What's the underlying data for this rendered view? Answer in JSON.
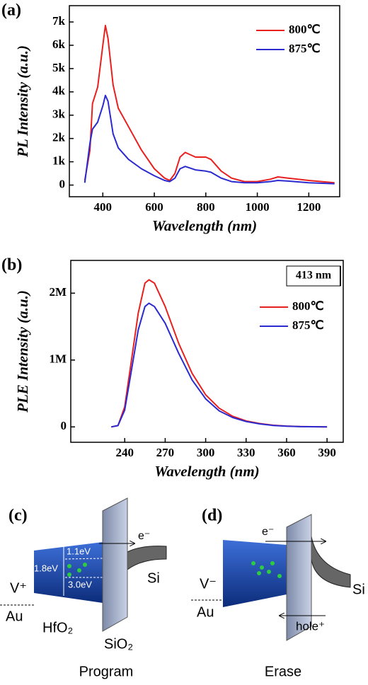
{
  "chart_data": [
    {
      "type": "line",
      "label": "(a)",
      "xlabel": "Wavelength (nm)",
      "ylabel": "PL Intensity (a.u.)",
      "x": [
        330,
        350,
        360,
        380,
        400,
        410,
        420,
        440,
        460,
        500,
        550,
        600,
        640,
        660,
        680,
        700,
        720,
        760,
        800,
        820,
        860,
        900,
        950,
        1000,
        1050,
        1080,
        1120,
        1200,
        1300
      ],
      "series": [
        {
          "name": "800℃",
          "color": "#e8201f",
          "values": [
            200,
            1500,
            3500,
            4200,
            6000,
            6850,
            6300,
            4300,
            3300,
            2500,
            1500,
            700,
            300,
            200,
            500,
            1200,
            1400,
            1200,
            1200,
            1100,
            600,
            300,
            150,
            150,
            250,
            350,
            300,
            200,
            100
          ]
        },
        {
          "name": "875℃",
          "color": "#2a2ad0",
          "values": [
            100,
            1800,
            2400,
            2700,
            3400,
            3850,
            3600,
            2200,
            1600,
            1100,
            700,
            400,
            200,
            150,
            300,
            700,
            800,
            650,
            600,
            550,
            300,
            150,
            100,
            100,
            150,
            200,
            170,
            100,
            60
          ]
        }
      ],
      "xlim": [
        270,
        1320
      ],
      "ylim": [
        -500,
        7700
      ],
      "xticks": [
        400,
        600,
        800,
        1000,
        1200
      ],
      "yticks": [
        0,
        {
          "value": 1000,
          "label": "1k"
        },
        {
          "value": 2000,
          "label": "2k"
        },
        {
          "value": 3000,
          "label": "3k"
        },
        {
          "value": 4000,
          "label": "4k"
        },
        {
          "value": 5000,
          "label": "5k"
        },
        {
          "value": 6000,
          "label": "6k"
        },
        {
          "value": 7000,
          "label": "7k"
        }
      ],
      "legend": "upper right"
    },
    {
      "type": "line",
      "label": "(b)",
      "xlabel": "Wavelength (nm)",
      "ylabel": "PLE Intensity (a.u.)",
      "annotation": "413 nm",
      "x": [
        230,
        235,
        240,
        245,
        250,
        255,
        258,
        262,
        270,
        280,
        290,
        300,
        310,
        320,
        330,
        340,
        350,
        360,
        370,
        390
      ],
      "series": [
        {
          "name": "800℃",
          "color": "#e8201f",
          "values": [
            0,
            20000,
            300000,
            1000000,
            1700000,
            2150000,
            2200000,
            2150000,
            1800000,
            1250000,
            800000,
            480000,
            280000,
            160000,
            90000,
            50000,
            25000,
            12000,
            5000,
            0
          ]
        },
        {
          "name": "875℃",
          "color": "#2a2ad0",
          "values": [
            0,
            20000,
            250000,
            850000,
            1450000,
            1800000,
            1850000,
            1800000,
            1550000,
            1100000,
            700000,
            420000,
            240000,
            140000,
            80000,
            45000,
            22000,
            10000,
            4000,
            0
          ]
        }
      ],
      "xlim": [
        200,
        402
      ],
      "ylim": [
        -230000,
        2490000
      ],
      "xticks": [
        240,
        270,
        300,
        330,
        360,
        390
      ],
      "yticks": [
        0,
        {
          "value": 1000000,
          "label": "1M"
        },
        {
          "value": 2000000,
          "label": "2M"
        }
      ],
      "legend": "upper right"
    }
  ],
  "diagrams": {
    "program": {
      "label": "(c)",
      "electron": "e⁻",
      "gap_top": "1.1eV",
      "gap_mid": "1.8eV",
      "gap_bottom": "3.0eV",
      "voltage": "V⁺",
      "si": "Si",
      "au": "Au",
      "hfo2": "HfO₂",
      "sio2": "SiO₂",
      "caption": "Program"
    },
    "erase": {
      "label": "(d)",
      "electron": "e⁻",
      "voltage": "V⁻",
      "au": "Au",
      "hole": "hole⁺",
      "si": "Si",
      "caption": "Erase"
    }
  }
}
